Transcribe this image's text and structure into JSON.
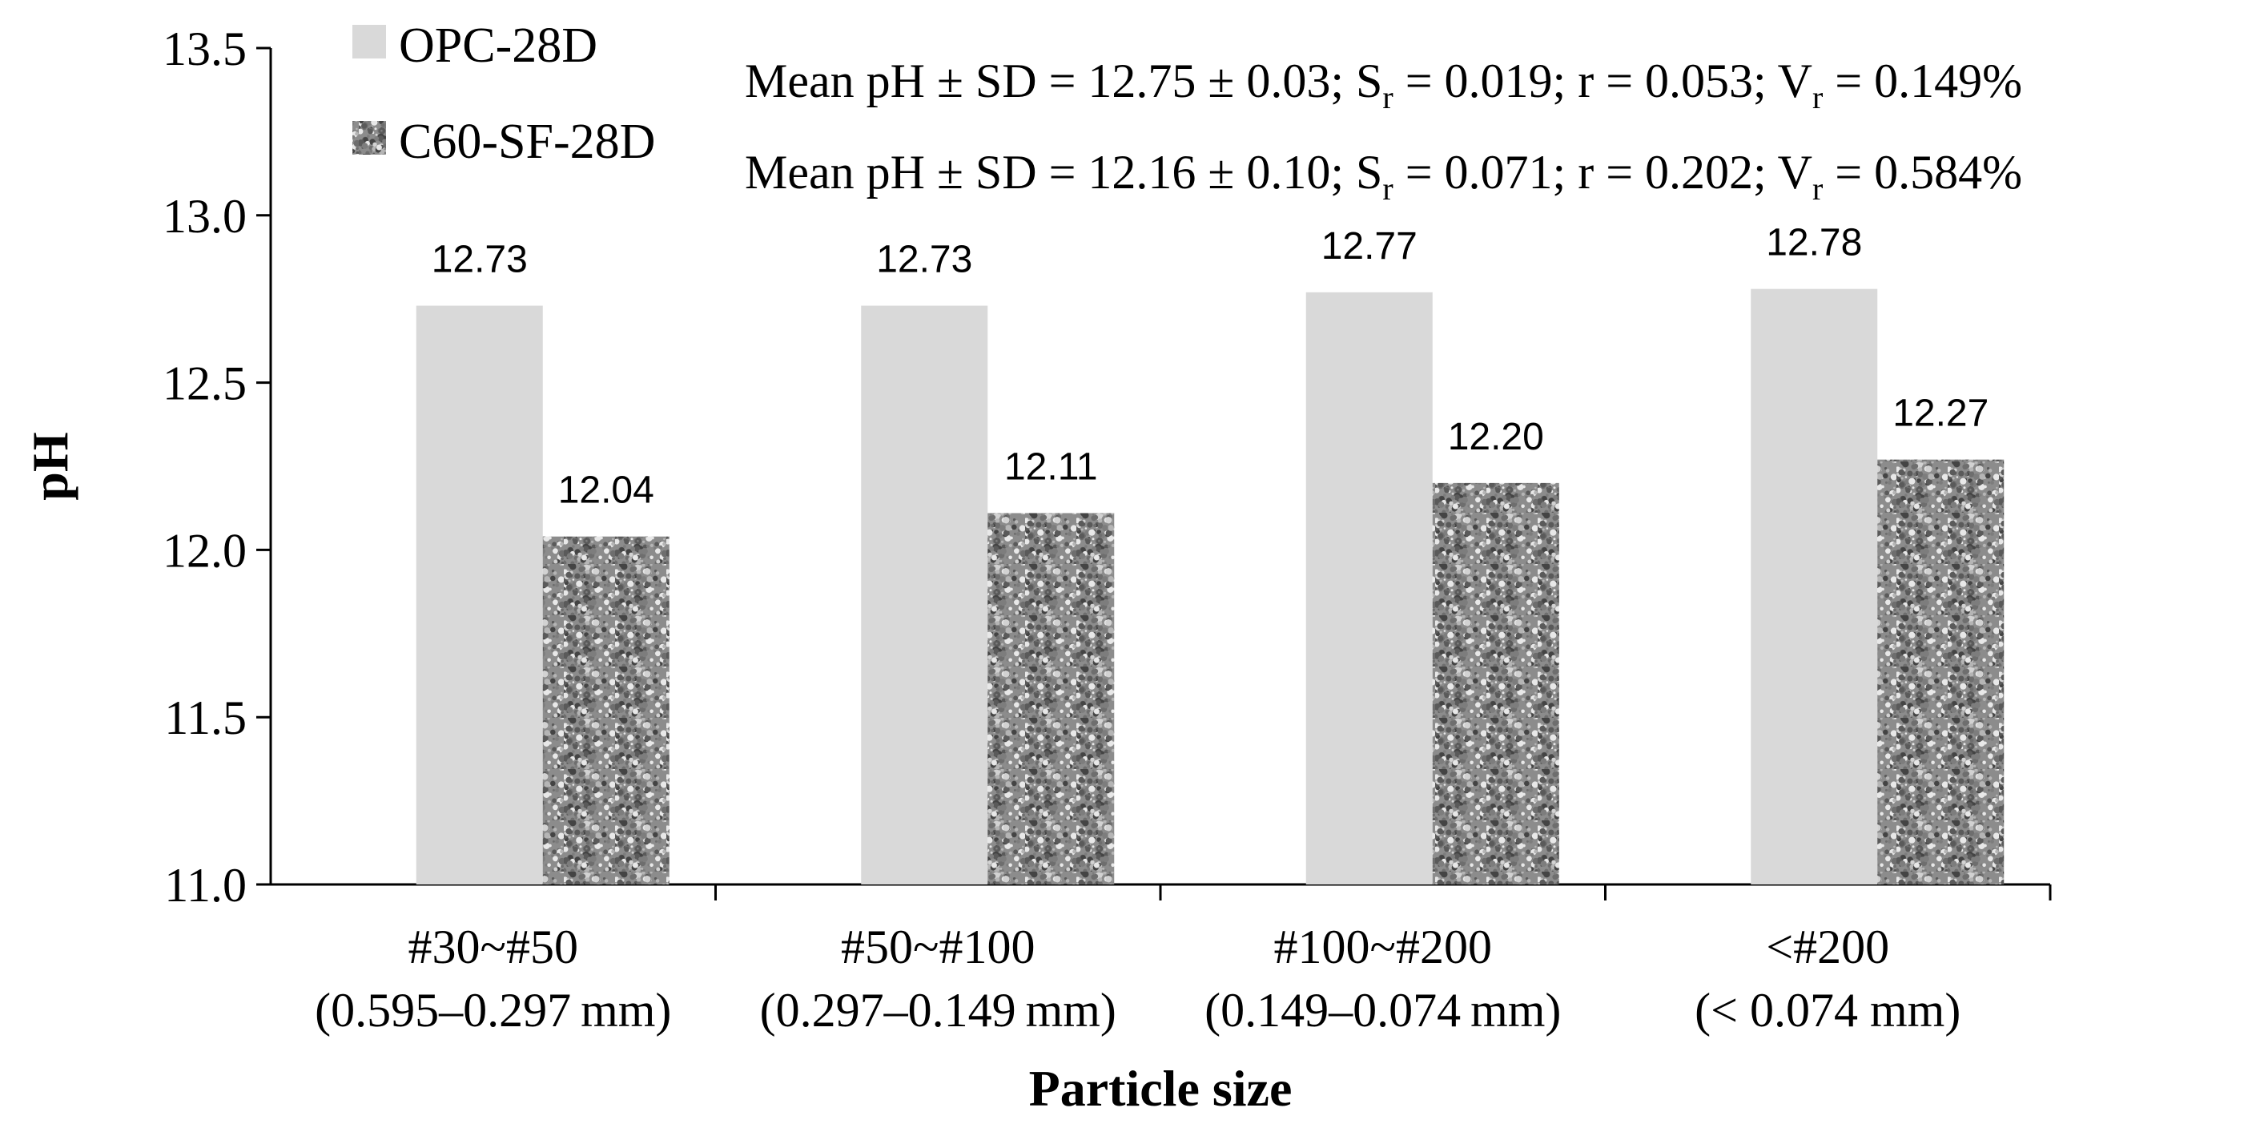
{
  "chart_data": {
    "type": "bar",
    "title": "",
    "xlabel": "Particle size",
    "ylabel": "pH",
    "ylim": [
      11.0,
      13.5
    ],
    "yticks": [
      "11.0",
      "11.5",
      "12.0",
      "12.5",
      "13.0",
      "13.5"
    ],
    "grid": false,
    "legend_position": "top-left",
    "categories": [
      {
        "line1": "#30~#50",
        "line2": "(0.595–0.297 mm)"
      },
      {
        "line1": "#50~#100",
        "line2": "(0.297–0.149 mm)"
      },
      {
        "line1": "#100~#200",
        "line2": "(0.149–0.074 mm)"
      },
      {
        "line1": "<#200",
        "line2": "(< 0.074 mm)"
      }
    ],
    "series": [
      {
        "name": "OPC-28D",
        "color": "#d9d9d9",
        "pattern": "solid",
        "values": [
          12.73,
          12.73,
          12.77,
          12.78
        ],
        "labels": [
          "12.73",
          "12.73",
          "12.77",
          "12.78"
        ]
      },
      {
        "name": "C60-SF-28D",
        "color": "#8c8c8c",
        "pattern": "granite",
        "values": [
          12.04,
          12.11,
          12.2,
          12.27
        ],
        "labels": [
          "12.04",
          "12.11",
          "12.20",
          "12.27"
        ]
      }
    ],
    "annotations": [
      {
        "prefix": "Mean pH ± SD = 12.75 ± 0.03; S",
        "sub1": "r",
        "mid": " = 0.019; r = 0.053; V",
        "sub2": "r",
        "suffix": " = 0.149%"
      },
      {
        "prefix": "Mean pH ± SD = 12.16 ± 0.10; S",
        "sub1": "r",
        "mid": " = 0.071; r = 0.202; V",
        "sub2": "r",
        "suffix": " = 0.584%"
      }
    ]
  }
}
